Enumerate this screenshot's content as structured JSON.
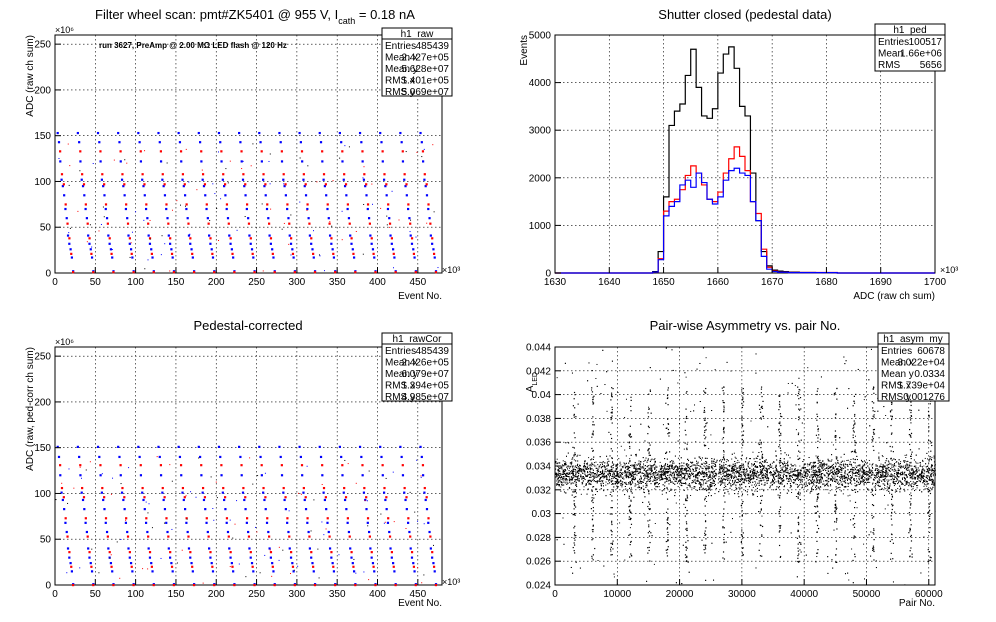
{
  "panels": [
    {
      "id": "raw",
      "title_main": "Filter wheel scan: pmt#ZK5401 @   955 V, I",
      "title_sub": "cath",
      "title_tail": " = 0.18 nA",
      "annotation": "run 3627, PreAmp @ 2.00 MΩ LED flash @  120 Hz",
      "stats_name": "h1_raw",
      "stats": [
        [
          "Entries",
          "485439"
        ],
        [
          "Mean x",
          "2.427e+05"
        ],
        [
          "Mean y",
          "5.628e+07"
        ],
        [
          "RMS x",
          "1.401e+05"
        ],
        [
          "RMS y",
          "5.069e+07"
        ]
      ],
      "xlabel": "Event No.",
      "ylabel": "ADC (raw ch sum)",
      "x_exponent": "×10³",
      "y_exponent": "×10⁶",
      "x_ticks": [
        "0",
        "50",
        "100",
        "150",
        "200",
        "250",
        "300",
        "350",
        "400",
        "450"
      ],
      "y_ticks": [
        "0",
        "50",
        "100",
        "150",
        "200",
        "250"
      ]
    },
    {
      "id": "ped",
      "title_main": "Shutter closed (pedestal data)",
      "stats_name": "h1_ped",
      "stats": [
        [
          "Entries",
          "100517"
        ],
        [
          "Mean",
          "1.66e+06"
        ],
        [
          "RMS",
          "5656"
        ]
      ],
      "xlabel": "ADC (raw ch sum)",
      "ylabel": "Events",
      "x_exponent": "×10³",
      "x_ticks": [
        "1630",
        "1640",
        "1650",
        "1660",
        "1670",
        "1680",
        "1690",
        "1700"
      ],
      "y_ticks": [
        "0",
        "1000",
        "2000",
        "3000",
        "4000",
        "5000"
      ]
    },
    {
      "id": "rawcor",
      "title_main": "Pedestal-corrected",
      "stats_name": "h1_rawCor",
      "stats": [
        [
          "Entries",
          "485439"
        ],
        [
          "Mean x",
          "2.426e+05"
        ],
        [
          "Mean y",
          "6.079e+07"
        ],
        [
          "RMS x",
          "1.394e+05"
        ],
        [
          "RMS y",
          "4.985e+07"
        ]
      ],
      "xlabel": "Event No.",
      "ylabel": "ADC (raw, ped-corr ch sum)",
      "x_exponent": "×10³",
      "y_exponent": "×10⁶",
      "x_ticks": [
        "0",
        "50",
        "100",
        "150",
        "200",
        "250",
        "300",
        "350",
        "400",
        "450"
      ],
      "y_ticks": [
        "0",
        "50",
        "100",
        "150",
        "200",
        "250"
      ]
    },
    {
      "id": "asym",
      "title_main": "Pair-wise Asymmetry vs. pair No.",
      "stats_name": "h1_asym_my",
      "stats": [
        [
          "Entries",
          "60678"
        ],
        [
          "Mean x",
          "3.022e+04"
        ],
        [
          "Mean y",
          "0.0334"
        ],
        [
          "RMS x",
          "1.739e+04"
        ],
        [
          "RMS y",
          "0.001276"
        ]
      ],
      "xlabel": "Pair No.",
      "ylabel_main": "A",
      "ylabel_sub": "LED",
      "x_ticks": [
        "0",
        "10000",
        "20000",
        "30000",
        "40000",
        "50000",
        "60000"
      ],
      "y_ticks": [
        "0.024",
        "0.026",
        "0.028",
        "0.03",
        "0.032",
        "0.034",
        "0.036",
        "0.038",
        "0.04",
        "0.042",
        "0.044"
      ]
    }
  ],
  "chart_data": [
    {
      "type": "scatter",
      "title": "Filter wheel scan: pmt#ZK5401 @   955 V, Icath = 0.18 nA",
      "xlabel": "Event No.",
      "ylabel": "ADC (raw ch sum)",
      "x_scale": "x10^3",
      "y_scale": "x10^6",
      "xlim": [
        0,
        480
      ],
      "ylim": [
        0,
        260
      ],
      "grid": true,
      "legend": "top-right stats box",
      "colors": {
        "blue": "#0000ff",
        "red": "#ff0000",
        "black": "#000000"
      },
      "period": 25,
      "levels_blue": [
        153,
        143,
        122,
        102,
        95,
        85,
        70,
        60,
        41,
        32,
        26,
        17,
        2
      ],
      "levels_red": [
        133,
        108,
        97,
        75,
        54,
        38,
        21,
        1
      ]
    },
    {
      "type": "line",
      "title": "Shutter closed (pedestal data)",
      "xlabel": "ADC (raw ch sum)",
      "ylabel": "Events",
      "x_scale": "x10^3",
      "xlim": [
        1630,
        1700
      ],
      "ylim": [
        0,
        5000
      ],
      "grid": true,
      "series": [
        {
          "color": "#000000",
          "x": [
            1630,
            1645,
            1648,
            1649,
            1650,
            1651,
            1652,
            1653,
            1654,
            1655,
            1656,
            1657,
            1658,
            1659,
            1660,
            1661,
            1662,
            1663,
            1664,
            1665,
            1666,
            1667,
            1668,
            1669,
            1670,
            1671,
            1672,
            1673,
            1675,
            1678,
            1682,
            1700
          ],
          "y": [
            0,
            0,
            30,
            450,
            1600,
            3100,
            3400,
            3550,
            4150,
            4700,
            3900,
            3300,
            3250,
            3450,
            4200,
            4600,
            4750,
            4300,
            3500,
            3300,
            2100,
            1100,
            450,
            150,
            60,
            40,
            30,
            20,
            10,
            5,
            0,
            0
          ]
        },
        {
          "color": "#ff0000",
          "x": [
            1630,
            1645,
            1648,
            1649,
            1650,
            1651,
            1652,
            1653,
            1654,
            1655,
            1656,
            1657,
            1658,
            1659,
            1660,
            1661,
            1662,
            1663,
            1664,
            1665,
            1666,
            1667,
            1668,
            1669,
            1670,
            1671,
            1673,
            1682,
            1700
          ],
          "y": [
            0,
            0,
            20,
            300,
            1300,
            1500,
            1550,
            1750,
            2050,
            2250,
            2100,
            1850,
            1550,
            1500,
            1700,
            2100,
            2400,
            2650,
            2450,
            2150,
            1500,
            1250,
            500,
            120,
            40,
            20,
            10,
            0,
            0
          ]
        },
        {
          "color": "#0000ff",
          "x": [
            1630,
            1645,
            1648,
            1649,
            1650,
            1651,
            1652,
            1653,
            1654,
            1655,
            1656,
            1657,
            1658,
            1659,
            1660,
            1661,
            1662,
            1663,
            1664,
            1665,
            1666,
            1667,
            1668,
            1669,
            1670,
            1671,
            1673,
            1682,
            1700
          ],
          "y": [
            0,
            0,
            20,
            280,
            1200,
            1400,
            1500,
            1850,
            1950,
            1800,
            2100,
            1900,
            1550,
            1450,
            1600,
            1950,
            2150,
            2200,
            2100,
            2050,
            1500,
            1100,
            350,
            80,
            30,
            15,
            8,
            0,
            0
          ]
        }
      ]
    },
    {
      "type": "scatter",
      "title": "Pedestal-corrected",
      "xlabel": "Event No.",
      "ylabel": "ADC (raw, ped-corr ch sum)",
      "x_scale": "x10^3",
      "y_scale": "x10^6",
      "xlim": [
        0,
        480
      ],
      "ylim": [
        0,
        260
      ],
      "grid": true,
      "legend": "top-right stats box",
      "period": 25,
      "levels_blue": [
        151,
        140,
        120,
        101,
        93,
        83,
        68,
        58,
        40,
        30,
        24,
        15,
        1
      ],
      "levels_red": [
        131,
        106,
        96,
        73,
        53,
        36,
        20,
        0
      ]
    },
    {
      "type": "scatter",
      "title": "Pair-wise Asymmetry vs. pair No.",
      "xlabel": "Pair No.",
      "ylabel": "A_LED",
      "xlim": [
        0,
        61000
      ],
      "ylim": [
        0.024,
        0.044
      ],
      "grid": true,
      "legend": "top-right stats box",
      "band_center": 0.0333,
      "band_halfwidth": 0.0012,
      "spike_period": 3000
    }
  ]
}
